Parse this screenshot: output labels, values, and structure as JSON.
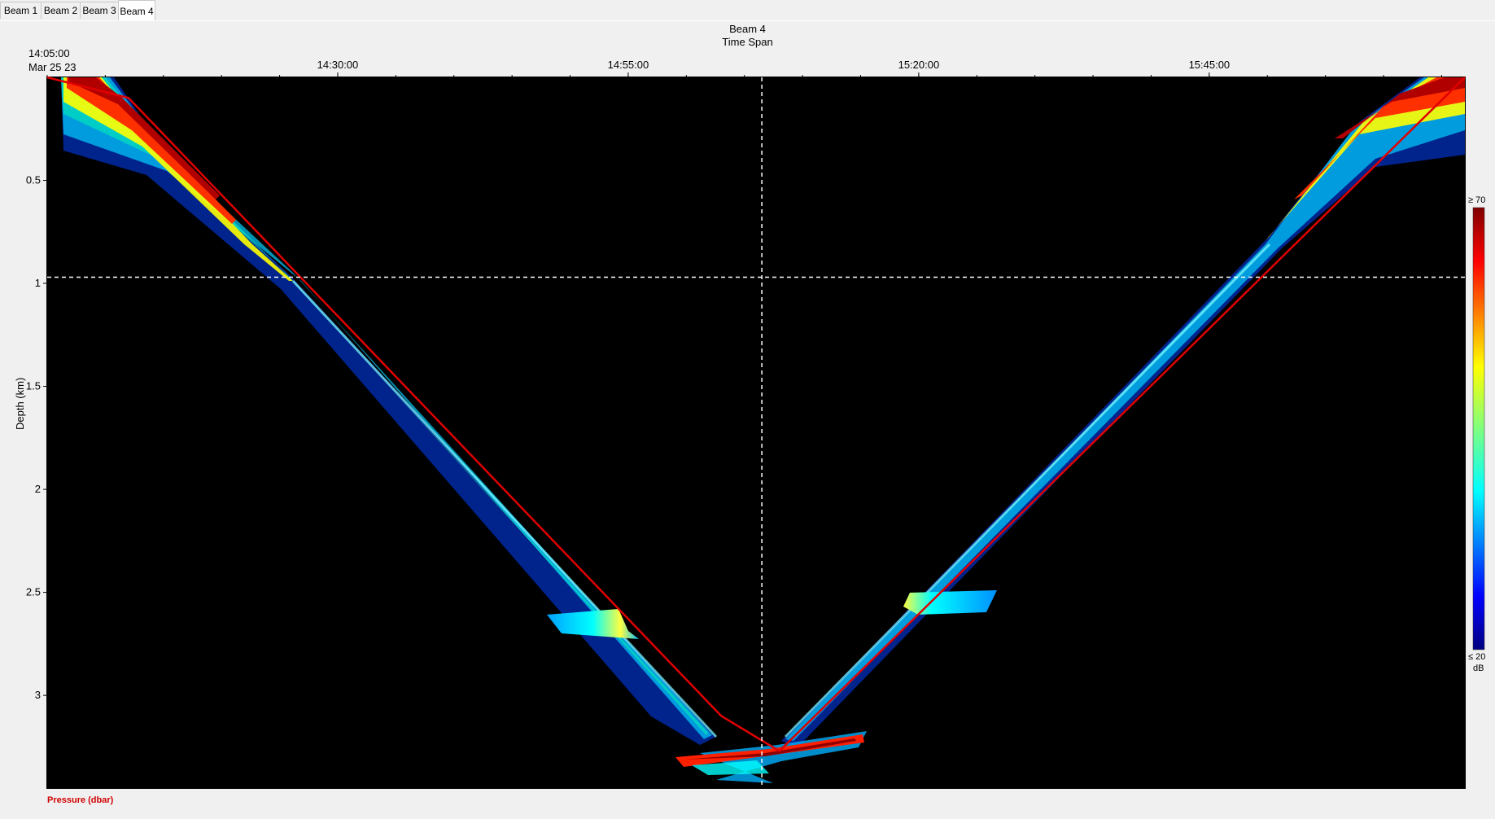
{
  "tabs": [
    {
      "label": "Beam 1",
      "active": false
    },
    {
      "label": "Beam 2",
      "active": false
    },
    {
      "label": "Beam 3",
      "active": false
    },
    {
      "label": "Beam 4",
      "active": true
    }
  ],
  "plot": {
    "title": "Beam 4",
    "subtitle": "Time Span",
    "start_time": "14:05:00",
    "start_date": "Mar 25 23",
    "ylabel": "Depth (km)",
    "legend_pressure": "Pressure (dbar)",
    "colorbar": {
      "max_label": "≥ 70",
      "min_label": "≤ 20",
      "unit": "dB"
    },
    "colors": {
      "background": "#000000",
      "pressure_line": "#e00000",
      "crosshair": "#ffffff"
    }
  },
  "chart_data": {
    "type": "heatmap",
    "title": "Beam 4",
    "subtitle": "Time Span",
    "xlabel": "",
    "ylabel": "Depth (km)",
    "x_ticks": [
      "14:30:00",
      "14:55:00",
      "15:20:00",
      "15:45:00"
    ],
    "x_range": [
      "14:05:00",
      "16:07:00"
    ],
    "y_ticks": [
      0.5,
      1,
      1.5,
      2,
      2.5,
      3
    ],
    "y_range": [
      0,
      3.45
    ],
    "y_inverted": true,
    "colorscale": {
      "min": 20,
      "max": 70,
      "unit": "dB",
      "palette": "jet"
    },
    "pressure_line": {
      "name": "Pressure (dbar)",
      "time_min": [
        0,
        7,
        58,
        63,
        122
      ],
      "depth_km": [
        0,
        0.1,
        3.1,
        3.27,
        0
      ]
    },
    "crosshair": {
      "time": "15:06:30",
      "depth_km": 0.97
    },
    "grid": false
  }
}
